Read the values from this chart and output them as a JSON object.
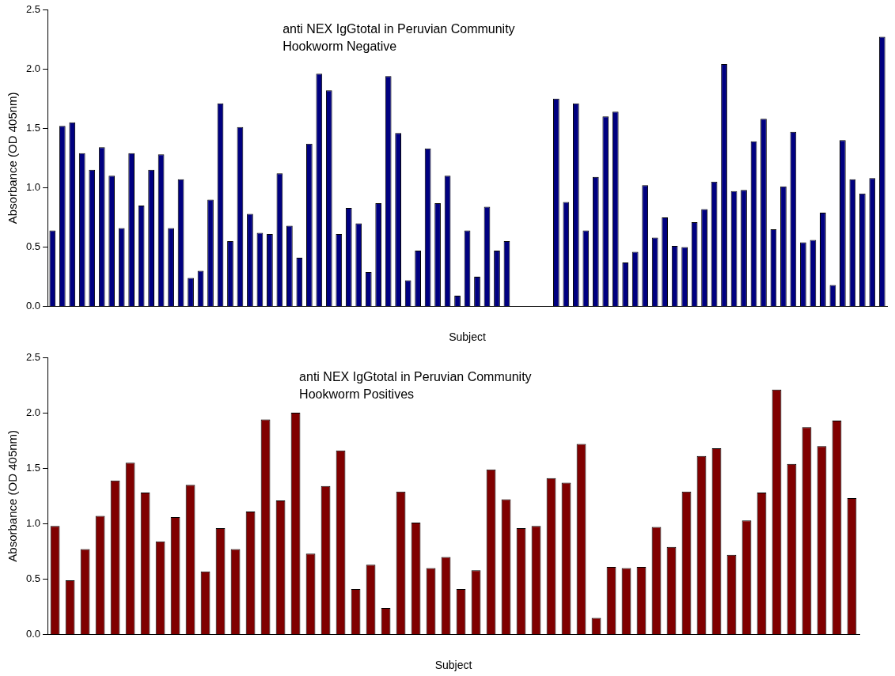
{
  "chart_data": [
    {
      "type": "bar",
      "title": "anti NEX IgGtotal in Peruvian Community",
      "subtitle": "Hookworm Negative",
      "xlabel": "Subject",
      "ylabel": "Absorbance (OD 405nm)",
      "categories": [
        null,
        null,
        null,
        null,
        null,
        null,
        null,
        null,
        null,
        null,
        null,
        null,
        null,
        null,
        null,
        null,
        null,
        null,
        null,
        null,
        null,
        null,
        null,
        null,
        null,
        null,
        null,
        null,
        null,
        null,
        null,
        null,
        null,
        null,
        null,
        null,
        null,
        null,
        null,
        null,
        null,
        null,
        null,
        null,
        null,
        null,
        null,
        null,
        null,
        null,
        null,
        null,
        null,
        null,
        null,
        null,
        null,
        null,
        null,
        null,
        null,
        null,
        null,
        null,
        null,
        null,
        null,
        null,
        null,
        null,
        null,
        null,
        null,
        null,
        null,
        null,
        null,
        null,
        null,
        null,
        null,
        null,
        null,
        null,
        null
      ],
      "series": [
        {
          "color": "#000080",
          "values": [
            0.64,
            1.52,
            1.55,
            1.29,
            1.15,
            1.34,
            1.1,
            0.66,
            1.29,
            0.85,
            1.15,
            1.28,
            0.66,
            1.07,
            0.24,
            0.3,
            0.9,
            1.71,
            0.55,
            1.51,
            0.78,
            0.62,
            0.61,
            1.12,
            0.68,
            0.41,
            1.37,
            1.96,
            1.82,
            0.61,
            0.83,
            0.7,
            0.29,
            0.87,
            1.94,
            1.46,
            0.22,
            0.47,
            1.33,
            0.87,
            1.1,
            0.09,
            0.64,
            0.25,
            0.84,
            0.47,
            0.55,
            null,
            null,
            null,
            null,
            1.75,
            0.88,
            1.71,
            0.64,
            1.09,
            1.6,
            1.64,
            0.37,
            0.46,
            1.02,
            0.58,
            0.75,
            0.51,
            0.5,
            0.71,
            0.82,
            1.05,
            2.04,
            0.97,
            0.98,
            1.39,
            1.58,
            0.65,
            1.01,
            1.47,
            0.54,
            0.56,
            0.79,
            0.18,
            1.4,
            1.07,
            0.95,
            1.08,
            2.27
          ]
        }
      ],
      "ylim": [
        0,
        2.5
      ],
      "yticks": [
        {
          "value": 0,
          "label": "0.0"
        },
        {
          "value": 0.5,
          "label": "0.5"
        },
        {
          "value": 1,
          "label": "1.0"
        },
        {
          "value": 1.5,
          "label": "1.5"
        },
        {
          "value": 2,
          "label": "2.0"
        },
        {
          "value": 2.5,
          "label": "2.5"
        }
      ],
      "grid": false,
      "legend": false
    },
    {
      "type": "bar",
      "title": "anti NEX IgGtotal in Peruvian Community",
      "subtitle": "Hookworm Positives",
      "xlabel": "Subject",
      "ylabel": "Absorbance (OD 405nm)",
      "categories": [
        null,
        null,
        null,
        null,
        null,
        null,
        null,
        null,
        null,
        null,
        null,
        null,
        null,
        null,
        null,
        null,
        null,
        null,
        null,
        null,
        null,
        null,
        null,
        null,
        null,
        null,
        null,
        null,
        null,
        null,
        null,
        null,
        null,
        null,
        null,
        null,
        null,
        null,
        null,
        null,
        null,
        null,
        null,
        null,
        null,
        null,
        null,
        null,
        null,
        null,
        null,
        null,
        null,
        null
      ],
      "series": [
        {
          "color": "#800000",
          "values": [
            0.98,
            0.49,
            0.77,
            1.07,
            1.39,
            1.55,
            1.28,
            0.84,
            1.06,
            1.35,
            0.57,
            0.96,
            0.77,
            1.11,
            1.94,
            1.21,
            2.0,
            0.73,
            1.34,
            1.66,
            0.41,
            0.63,
            0.24,
            1.29,
            1.01,
            0.6,
            0.7,
            0.41,
            0.58,
            1.49,
            1.22,
            0.96,
            0.98,
            1.41,
            1.37,
            1.72,
            0.15,
            0.61,
            0.6,
            0.61,
            0.97,
            0.79,
            1.29,
            1.61,
            1.68,
            0.72,
            1.03,
            1.28,
            2.21,
            1.54,
            1.87,
            1.7,
            1.93,
            1.23
          ]
        }
      ],
      "ylim": [
        0,
        2.5
      ],
      "yticks": [
        {
          "value": 0,
          "label": "0.0"
        },
        {
          "value": 0.5,
          "label": "0.5"
        },
        {
          "value": 1,
          "label": "1.0"
        },
        {
          "value": 1.5,
          "label": "1.5"
        },
        {
          "value": 2,
          "label": "2.0"
        },
        {
          "value": 2.5,
          "label": "2.5"
        }
      ],
      "grid": false,
      "legend": false
    }
  ]
}
